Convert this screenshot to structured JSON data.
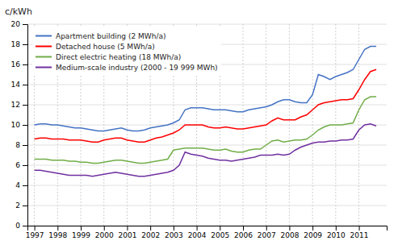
{
  "chart_data": {
    "type": "line",
    "ylabel": "c/kWh",
    "x": [
      1997.0,
      1997.25,
      1997.5,
      1997.75,
      1998.0,
      1998.25,
      1998.5,
      1998.75,
      1999.0,
      1999.25,
      1999.5,
      1999.75,
      2000.0,
      2000.25,
      2000.5,
      2000.75,
      2001.0,
      2001.25,
      2001.5,
      2001.75,
      2002.0,
      2002.25,
      2002.5,
      2002.75,
      2003.0,
      2003.25,
      2003.5,
      2003.75,
      2004.0,
      2004.25,
      2004.5,
      2004.75,
      2005.0,
      2005.25,
      2005.5,
      2005.75,
      2006.0,
      2006.25,
      2006.5,
      2006.75,
      2007.0,
      2007.25,
      2007.5,
      2007.75,
      2008.0,
      2008.25,
      2008.5,
      2008.75,
      2009.0,
      2009.25,
      2009.5,
      2009.75,
      2010.0,
      2010.25,
      2010.5,
      2010.75,
      2011.0,
      2011.25,
      2011.5,
      2011.75
    ],
    "series": [
      {
        "name": "Apartment building (2 MWh/a)",
        "color": "#4472C4",
        "values": [
          10.0,
          10.1,
          10.1,
          10.0,
          10.0,
          9.9,
          9.8,
          9.7,
          9.7,
          9.6,
          9.5,
          9.4,
          9.4,
          9.5,
          9.6,
          9.7,
          9.5,
          9.4,
          9.4,
          9.5,
          9.7,
          9.8,
          9.9,
          10.0,
          10.2,
          10.5,
          11.5,
          11.7,
          11.7,
          11.7,
          11.6,
          11.5,
          11.5,
          11.5,
          11.4,
          11.3,
          11.3,
          11.5,
          11.6,
          11.7,
          11.8,
          12.0,
          12.3,
          12.5,
          12.5,
          12.3,
          12.2,
          12.2,
          13.0,
          15.0,
          14.8,
          14.5,
          14.8,
          15.0,
          15.2,
          15.5,
          16.5,
          17.5,
          17.8,
          17.8
        ]
      },
      {
        "name": "Detached house (5 MWh/a)",
        "color": "#FF0000",
        "values": [
          8.6,
          8.7,
          8.7,
          8.6,
          8.6,
          8.6,
          8.5,
          8.5,
          8.5,
          8.4,
          8.3,
          8.3,
          8.5,
          8.6,
          8.7,
          8.7,
          8.5,
          8.4,
          8.3,
          8.3,
          8.5,
          8.7,
          8.8,
          9.0,
          9.2,
          9.5,
          10.0,
          10.0,
          10.0,
          10.0,
          9.8,
          9.7,
          9.7,
          9.8,
          9.7,
          9.6,
          9.6,
          9.7,
          9.8,
          9.9,
          10.0,
          10.4,
          10.7,
          10.5,
          10.5,
          10.5,
          10.8,
          11.0,
          11.5,
          12.0,
          12.2,
          12.3,
          12.4,
          12.5,
          12.5,
          12.6,
          13.5,
          14.5,
          15.3,
          15.5
        ]
      },
      {
        "name": "Direct electric heating (18 MWh/a)",
        "color": "#70AD47",
        "values": [
          6.6,
          6.6,
          6.6,
          6.5,
          6.5,
          6.5,
          6.4,
          6.4,
          6.3,
          6.3,
          6.2,
          6.2,
          6.3,
          6.4,
          6.5,
          6.5,
          6.4,
          6.3,
          6.2,
          6.2,
          6.3,
          6.4,
          6.5,
          6.6,
          7.5,
          7.6,
          7.7,
          7.7,
          7.7,
          7.7,
          7.6,
          7.5,
          7.5,
          7.6,
          7.4,
          7.3,
          7.3,
          7.5,
          7.6,
          7.6,
          8.0,
          8.4,
          8.5,
          8.3,
          8.4,
          8.5,
          8.5,
          8.6,
          9.0,
          9.5,
          9.8,
          10.0,
          10.0,
          10.0,
          10.1,
          10.2,
          11.5,
          12.5,
          12.8,
          12.8
        ]
      },
      {
        "name": "Medium-scale industry (2000 - 19 999 MWh)",
        "color": "#7030A0",
        "values": [
          5.5,
          5.5,
          5.4,
          5.3,
          5.2,
          5.1,
          5.0,
          5.0,
          5.0,
          5.0,
          4.9,
          5.0,
          5.1,
          5.2,
          5.3,
          5.2,
          5.1,
          5.0,
          4.9,
          4.9,
          5.0,
          5.1,
          5.2,
          5.3,
          5.5,
          6.0,
          7.3,
          7.1,
          7.0,
          6.9,
          6.7,
          6.6,
          6.5,
          6.5,
          6.4,
          6.5,
          6.6,
          6.7,
          6.8,
          7.0,
          7.0,
          7.0,
          7.1,
          7.0,
          7.1,
          7.5,
          7.8,
          8.0,
          8.2,
          8.3,
          8.3,
          8.4,
          8.4,
          8.5,
          8.5,
          8.6,
          9.5,
          10.0,
          10.1,
          9.9
        ]
      }
    ],
    "xlim": [
      1996.7,
      2012.2
    ],
    "xticks": [
      1997,
      1998,
      1999,
      2000,
      2001,
      2002,
      2003,
      2004,
      2005,
      2006,
      2007,
      2008,
      2009,
      2010,
      2011
    ],
    "ylim": [
      0,
      20
    ],
    "yticks": [
      0,
      2,
      4,
      6,
      8,
      10,
      12,
      14,
      16,
      18,
      20
    ],
    "grid": true,
    "legend": "upper left"
  }
}
